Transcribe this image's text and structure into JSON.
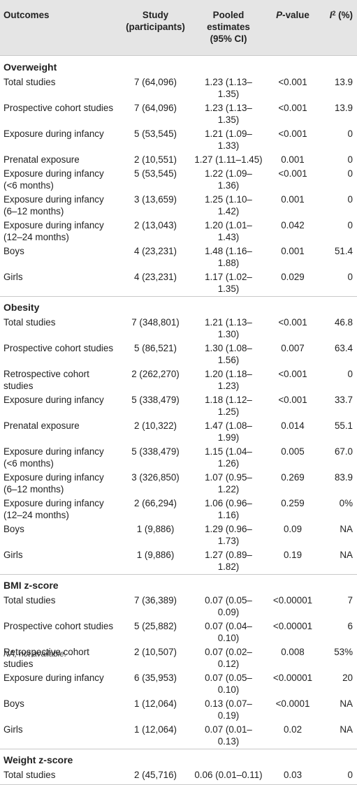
{
  "headers": {
    "outcomes": "Outcomes",
    "study": "Study (participants)",
    "pooled_line1": "Pooled",
    "pooled_line2": "estimates",
    "pooled_line3": "(95% CI)",
    "pvalue_italic": "P",
    "pvalue_rest": "-value",
    "i2_italic": "I",
    "i2_sup": "2",
    "i2_rest": " (%)"
  },
  "sections": [
    {
      "title": "Overweight",
      "rows": [
        [
          "Total studies",
          "7 (64,096)",
          "1.23 (1.13–1.35)",
          "<0.001",
          "13.9"
        ],
        [
          "Prospective cohort studies",
          "7 (64,096)",
          "1.23 (1.13–1.35)",
          "<0.001",
          "13.9"
        ],
        [
          "Exposure during infancy",
          "5 (53,545)",
          "1.21 (1.09–1.33)",
          "<0.001",
          "0"
        ],
        [
          "Prenatal exposure",
          "2 (10,551)",
          "1.27 (1.11–1.45)",
          "0.001",
          "0"
        ],
        [
          "Exposure during infancy (<6 months)",
          "5 (53,545)",
          "1.22 (1.09–1.36)",
          "<0.001",
          "0"
        ],
        [
          "Exposure during infancy (6–12 months)",
          "3 (13,659)",
          "1.25 (1.10–1.42)",
          "0.001",
          "0"
        ],
        [
          "Exposure during infancy (12–24 months)",
          "2 (13,043)",
          "1.20 (1.01–1.43)",
          "0.042",
          "0"
        ],
        [
          "Boys",
          "4 (23,231)",
          "1.48 (1.16–1.88)",
          "0.001",
          "51.4"
        ],
        [
          "Girls",
          "4 (23,231)",
          "1.17 (1.02–1.35)",
          "0.029",
          "0"
        ]
      ]
    },
    {
      "title": "Obesity",
      "rows": [
        [
          "Total studies",
          "7 (348,801)",
          "1.21 (1.13–1.30)",
          "<0.001",
          "46.8"
        ],
        [
          "Prospective cohort studies",
          "5 (86,521)",
          "1.30 (1.08–1.56)",
          "0.007",
          "63.4"
        ],
        [
          "Retrospective cohort studies",
          "2 (262,270)",
          "1.20 (1.18–1.23)",
          "<0.001",
          "0"
        ],
        [
          "Exposure during infancy",
          "5 (338,479)",
          "1.18 (1.12–1.25)",
          "<0.001",
          "33.7"
        ],
        [
          "Prenatal exposure",
          "2 (10,322)",
          "1.47 (1.08–1.99)",
          "0.014",
          "55.1"
        ],
        [
          "Exposure during infancy (<6 months)",
          "5 (338,479)",
          "1.15 (1.04–1.26)",
          "0.005",
          "67.0"
        ],
        [
          "Exposure during infancy (6–12 months)",
          "3 (326,850)",
          "1.07 (0.95–1.22)",
          "0.269",
          "83.9"
        ],
        [
          "Exposure during infancy (12–24 months)",
          "2 (66,294)",
          "1.06 (0.96–1.16)",
          "0.259",
          "0%"
        ],
        [
          "Boys",
          "1 (9,886)",
          "1.29 (0.96–1.73)",
          "0.09",
          "NA"
        ],
        [
          "Girls",
          "1 (9,886)",
          "1.27 (0.89–1.82)",
          "0.19",
          "NA"
        ]
      ]
    },
    {
      "title": "BMI z-score",
      "rows": [
        [
          "Total studies",
          "7 (36,389)",
          "0.07 (0.05–0.09)",
          "<0.00001",
          "7"
        ],
        [
          "Prospective cohort studies",
          "5 (25,882)",
          "0.07 (0.04–0.10)",
          "<0.00001",
          "6"
        ],
        [
          "Retrospective cohort studies",
          "2 (10,507)",
          "0.07 (0.02–0.12)",
          "0.008",
          "53%"
        ],
        [
          "Exposure during infancy",
          "6 (35,953)",
          "0.07 (0.05–0.10)",
          "<0.00001",
          "20"
        ],
        [
          "Boys",
          "1 (12,064)",
          "0.13 (0.07–0.19)",
          "<0.0001",
          "NA"
        ],
        [
          "Girls",
          "1 (12,064)",
          "0.07 (0.01–0.13)",
          "0.02",
          "NA"
        ]
      ]
    },
    {
      "title": "Weight z-score",
      "rows": [
        [
          "Total studies",
          "2 (45,716)",
          "0.06 (0.01–0.11)",
          "0.03",
          "0"
        ]
      ]
    }
  ],
  "footnote": "NA, not available."
}
